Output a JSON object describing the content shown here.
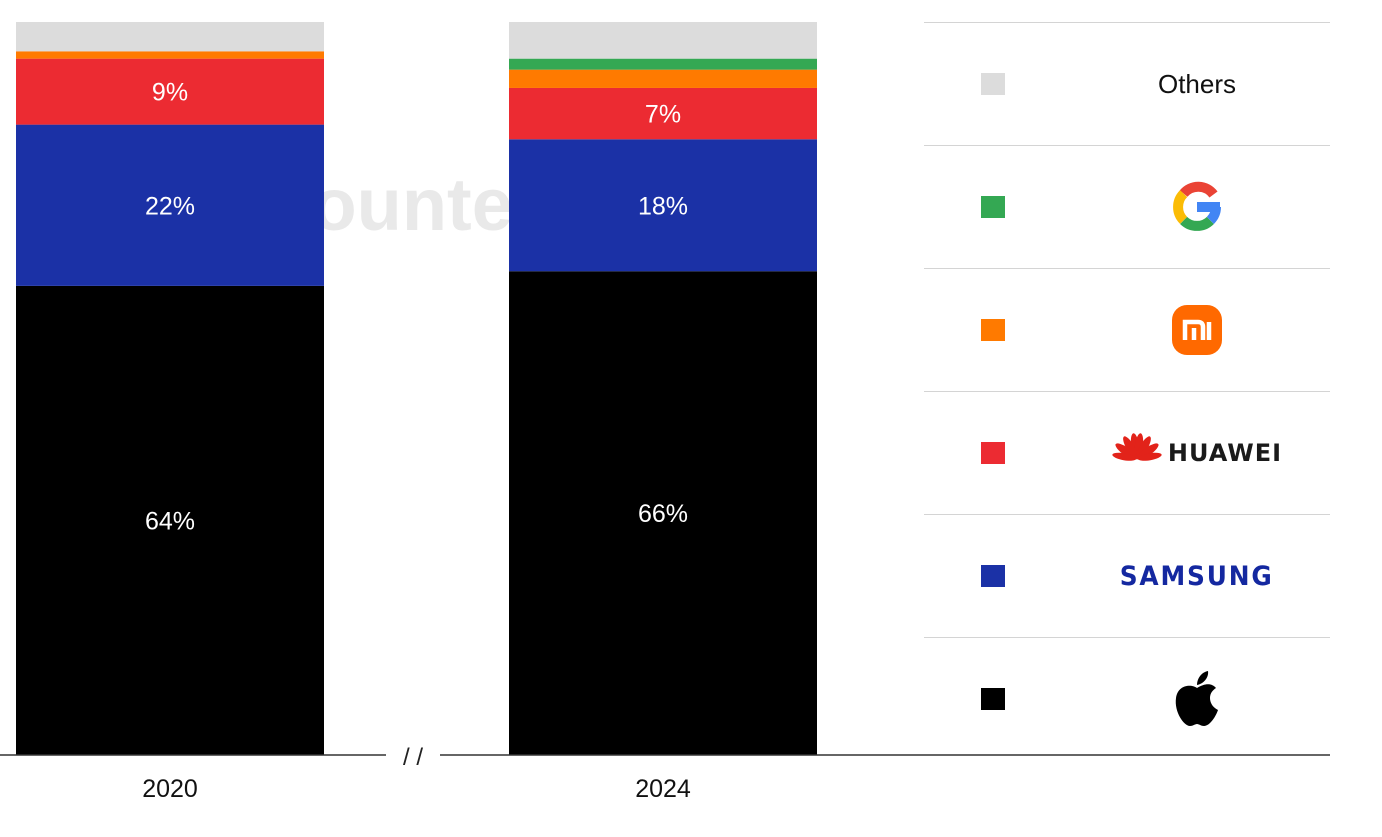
{
  "watermark_text": "Counterpoint",
  "break_mark": "/ /",
  "colors": {
    "others": "#dcdcdc",
    "google": "#34a853",
    "xiaomi": "#ff7a00",
    "huawei": "#ec2b32",
    "samsung": "#1b31a6",
    "apple": "#000000"
  },
  "chart_data": {
    "type": "bar",
    "stacked": true,
    "categories": [
      "2020",
      "2024"
    ],
    "series": [
      {
        "values": [
          64,
          66
        ],
        "labels": [
          "64%",
          "66%"
        ]
      },
      {
        "values": [
          22,
          18
        ],
        "labels": [
          "22%",
          "18%"
        ]
      },
      {
        "values": [
          9,
          7
        ],
        "labels": [
          "9%",
          "7%"
        ]
      },
      {
        "values": [
          1,
          2.5
        ],
        "labels": [
          "",
          ""
        ]
      },
      {
        "values": [
          0,
          1.5
        ],
        "labels": [
          "",
          ""
        ]
      },
      {
        "values": [
          4,
          5
        ],
        "labels": [
          "",
          ""
        ]
      }
    ],
    "ylim": [
      0,
      100
    ],
    "grid": false,
    "legend_position": "right",
    "legend": [
      {
        "key": "others",
        "text": "Others",
        "icon": "others-text"
      },
      {
        "key": "google",
        "text": "",
        "icon": "google-logo"
      },
      {
        "key": "xiaomi",
        "text": "",
        "icon": "xiaomi-logo"
      },
      {
        "key": "huawei",
        "text": "HUAWEI",
        "icon": "huawei-logo"
      },
      {
        "key": "samsung",
        "text": "SAMSUNG",
        "icon": "samsung-logo"
      },
      {
        "key": "apple",
        "text": "",
        "icon": "apple-logo"
      }
    ]
  }
}
